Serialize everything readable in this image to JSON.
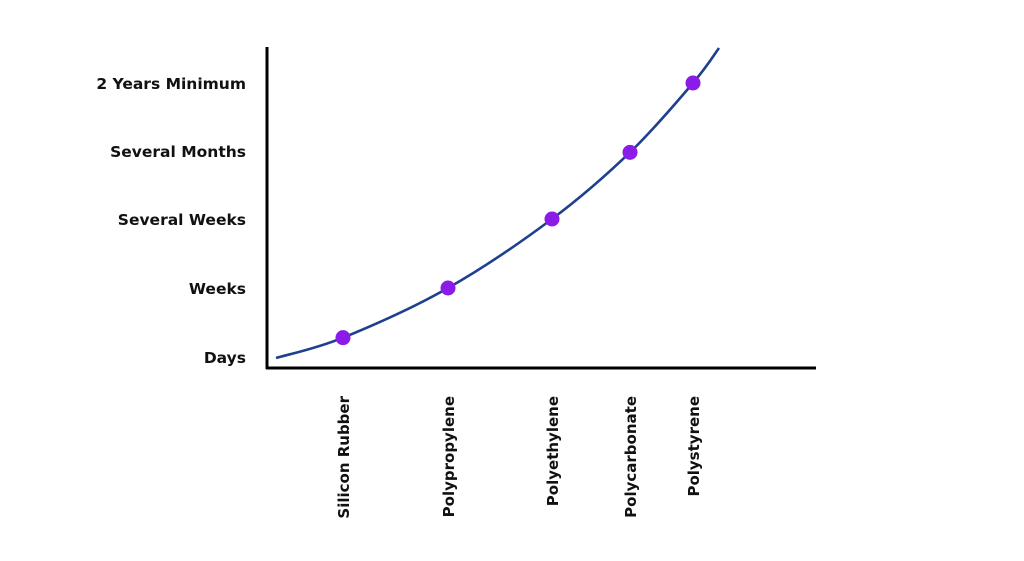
{
  "chart_data": {
    "type": "line",
    "title": "",
    "xlabel": "",
    "ylabel": "",
    "y_categories": [
      "Days",
      "Weeks",
      "Several Weeks",
      "Several Months",
      "2 Years Minimum"
    ],
    "categories": [
      "Silicon Rubber",
      "Polypropylene",
      "Polyethylene",
      "Polycarbonate",
      "Polystyrene"
    ],
    "points": [
      {
        "x": "Silicon Rubber",
        "y": 0.28
      },
      {
        "x": "Polypropylene",
        "y": 1.0
      },
      {
        "x": "Polyethylene",
        "y": 2.0
      },
      {
        "x": "Polycarbonate",
        "y": 2.98
      },
      {
        "x": "Polystyrene",
        "y": 4.0
      }
    ],
    "grid": false,
    "legend": "none",
    "colors": {
      "curve": "#1f3f8f",
      "marker": "#8a1be8",
      "axis": "#000000",
      "text": "#111111"
    }
  }
}
